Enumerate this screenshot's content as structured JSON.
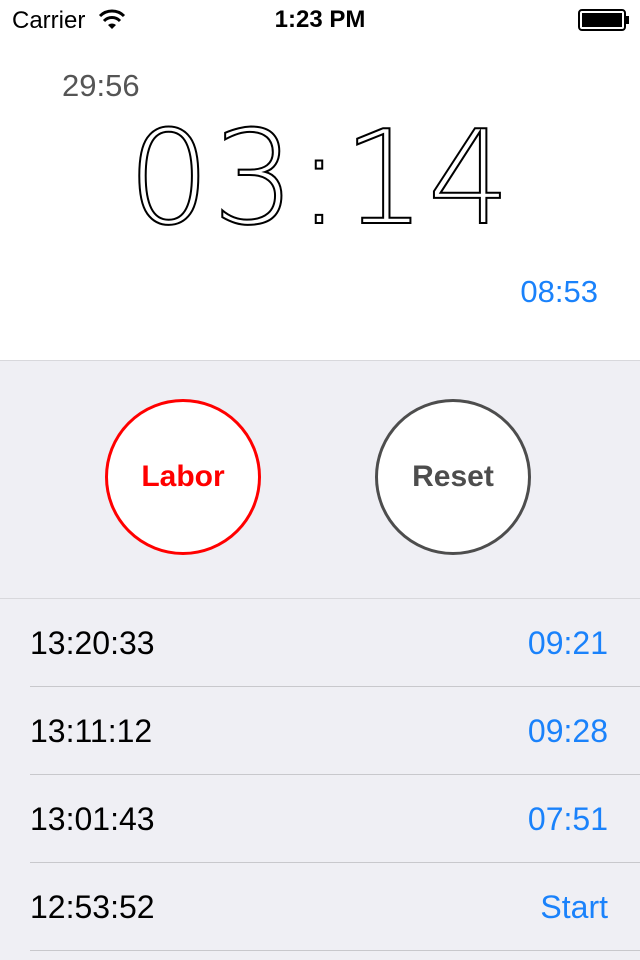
{
  "status_bar": {
    "carrier": "Carrier",
    "time": "1:23 PM",
    "wifi_icon": "wifi-icon",
    "battery_icon": "battery-icon"
  },
  "timer": {
    "elapsed_small": "29:56",
    "main": "03:14",
    "interval": "08:53"
  },
  "buttons": {
    "labor": "Labor",
    "reset": "Reset"
  },
  "colors": {
    "accent_blue": "#1a82fb",
    "labor_red": "#ff0000",
    "reset_gray": "#4d4d4d",
    "background": "#efeff4"
  },
  "laps": [
    {
      "time": "13:20:33",
      "duration": "09:21"
    },
    {
      "time": "13:11:12",
      "duration": "09:28"
    },
    {
      "time": "13:01:43",
      "duration": "07:51"
    },
    {
      "time": "12:53:52",
      "duration": "Start"
    }
  ]
}
